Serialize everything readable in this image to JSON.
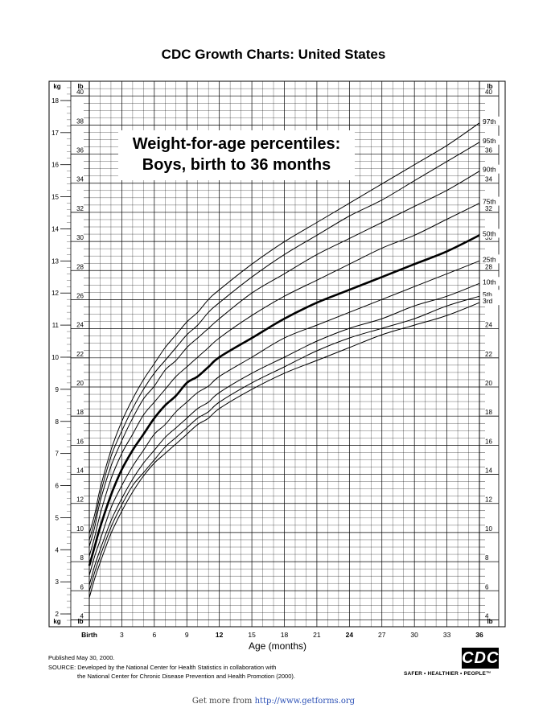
{
  "page": {
    "title": "CDC Growth Charts: United States",
    "published": "Published May 30, 2000.",
    "source_line1": "SOURCE: Developed by the National Center for Health Statistics in collaboration with",
    "source_line2": "the National Center for Chronic Disease Prevention and Health Promotion (2000).",
    "logo_text": "CDC",
    "tagline": "SAFER • HEALTHIER • PEOPLE™",
    "get_more_prefix": "Get more from ",
    "get_more_link": "http://www.getforms.org"
  },
  "chart_data": {
    "type": "line",
    "title_line1": "Weight-for-age percentiles:",
    "title_line2": "Boys, birth to 36 months",
    "xlabel": "Age (months)",
    "x_unit_left": "kg",
    "x_unit_lb": "lb",
    "xlim": [
      0,
      36
    ],
    "kg_ylim": [
      1.6,
      18.6
    ],
    "lb_ticks": [
      4,
      6,
      8,
      10,
      12,
      14,
      16,
      18,
      20,
      22,
      24,
      26,
      28,
      30,
      32,
      34,
      36,
      38,
      40
    ],
    "kg_ticks": [
      2,
      3,
      4,
      5,
      6,
      7,
      8,
      9,
      10,
      11,
      12,
      13,
      14,
      15,
      16,
      17,
      18
    ],
    "x_ticks": [
      {
        "v": 0,
        "label": "Birth",
        "bold": true
      },
      {
        "v": 3,
        "label": "3",
        "bold": false
      },
      {
        "v": 6,
        "label": "6",
        "bold": false
      },
      {
        "v": 9,
        "label": "9",
        "bold": false
      },
      {
        "v": 12,
        "label": "12",
        "bold": true
      },
      {
        "v": 15,
        "label": "15",
        "bold": false
      },
      {
        "v": 18,
        "label": "18",
        "bold": false
      },
      {
        "v": 21,
        "label": "21",
        "bold": false
      },
      {
        "v": 24,
        "label": "24",
        "bold": true
      },
      {
        "v": 27,
        "label": "27",
        "bold": false
      },
      {
        "v": 30,
        "label": "30",
        "bold": false
      },
      {
        "v": 33,
        "label": "33",
        "bold": false
      },
      {
        "v": 36,
        "label": "36",
        "bold": true
      }
    ],
    "grid": true,
    "x": [
      0,
      0.5,
      1,
      2,
      3,
      4,
      5,
      6,
      7,
      8,
      9,
      10,
      11,
      12,
      15,
      18,
      21,
      24,
      27,
      30,
      33,
      36
    ],
    "series": [
      {
        "name": "97th",
        "bold": false,
        "values": [
          4.5,
          5.1,
          5.9,
          7.1,
          8.0,
          8.7,
          9.3,
          9.8,
          10.3,
          10.7,
          11.1,
          11.4,
          11.8,
          12.1,
          12.9,
          13.6,
          14.2,
          14.8,
          15.4,
          16.0,
          16.6,
          17.3
        ]
      },
      {
        "name": "95th",
        "bold": false,
        "values": [
          4.3,
          4.9,
          5.7,
          6.9,
          7.7,
          8.4,
          9.0,
          9.5,
          9.9,
          10.3,
          10.7,
          11.0,
          11.4,
          11.7,
          12.5,
          13.2,
          13.8,
          14.4,
          14.9,
          15.5,
          16.1,
          16.7
        ]
      },
      {
        "name": "90th",
        "bold": false,
        "values": [
          4.1,
          4.7,
          5.5,
          6.6,
          7.4,
          8.1,
          8.7,
          9.1,
          9.6,
          9.9,
          10.3,
          10.6,
          10.9,
          11.2,
          12.0,
          12.6,
          13.2,
          13.7,
          14.2,
          14.7,
          15.2,
          15.8
        ]
      },
      {
        "name": "75th",
        "bold": false,
        "values": [
          3.8,
          4.4,
          5.1,
          6.2,
          7.0,
          7.6,
          8.2,
          8.6,
          9.0,
          9.4,
          9.7,
          10.0,
          10.3,
          10.6,
          11.3,
          11.9,
          12.4,
          12.9,
          13.4,
          13.8,
          14.3,
          14.8
        ]
      },
      {
        "name": "50th",
        "bold": true,
        "values": [
          3.5,
          4.1,
          4.7,
          5.7,
          6.5,
          7.1,
          7.6,
          8.1,
          8.5,
          8.8,
          9.2,
          9.4,
          9.7,
          10.0,
          10.6,
          11.2,
          11.7,
          12.1,
          12.5,
          12.9,
          13.3,
          13.8
        ]
      },
      {
        "name": "25th",
        "bold": false,
        "values": [
          3.2,
          3.8,
          4.3,
          5.3,
          6.0,
          6.6,
          7.1,
          7.6,
          7.9,
          8.3,
          8.6,
          8.9,
          9.1,
          9.4,
          10.0,
          10.6,
          11.0,
          11.4,
          11.8,
          12.2,
          12.6,
          13.0
        ]
      },
      {
        "name": "10th",
        "bold": false,
        "values": [
          2.9,
          3.5,
          4.0,
          4.9,
          5.6,
          6.2,
          6.7,
          7.1,
          7.5,
          7.8,
          8.1,
          8.4,
          8.6,
          8.9,
          9.5,
          10.0,
          10.5,
          10.9,
          11.2,
          11.6,
          11.9,
          12.3
        ]
      },
      {
        "name": "5th",
        "bold": false,
        "values": [
          2.7,
          3.3,
          3.8,
          4.7,
          5.4,
          6.0,
          6.4,
          6.8,
          7.2,
          7.5,
          7.8,
          8.1,
          8.3,
          8.6,
          9.2,
          9.7,
          10.2,
          10.6,
          10.9,
          11.2,
          11.6,
          11.9
        ]
      },
      {
        "name": "3rd",
        "bold": false,
        "values": [
          2.5,
          3.1,
          3.6,
          4.5,
          5.2,
          5.8,
          6.3,
          6.7,
          7.0,
          7.3,
          7.6,
          7.9,
          8.1,
          8.4,
          9.0,
          9.5,
          9.9,
          10.3,
          10.7,
          11.0,
          11.3,
          11.7
        ]
      }
    ]
  }
}
